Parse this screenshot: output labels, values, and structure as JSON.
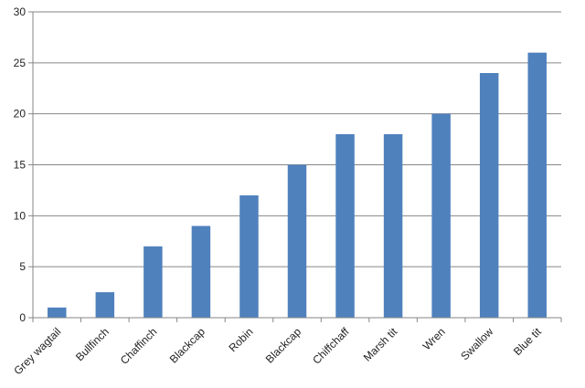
{
  "chart_data": {
    "type": "bar",
    "categories": [
      "Grey wagtail",
      "Bullfinch",
      "Chaffinch",
      "Blackcap",
      "Robin",
      "Blackcap",
      "Chiffchaff",
      "Marsh tit",
      "Wren",
      "Swallow",
      "Blue tit"
    ],
    "values": [
      1,
      2.5,
      7,
      9,
      12,
      15,
      18,
      18,
      20,
      24,
      26
    ],
    "ylim": [
      0,
      30
    ],
    "yticks": [
      0,
      5,
      10,
      15,
      20,
      25,
      30
    ],
    "grid": true,
    "legend": false,
    "colors": {
      "bar": "#4f81bd",
      "grid": "#868686",
      "axis": "#868686"
    }
  }
}
